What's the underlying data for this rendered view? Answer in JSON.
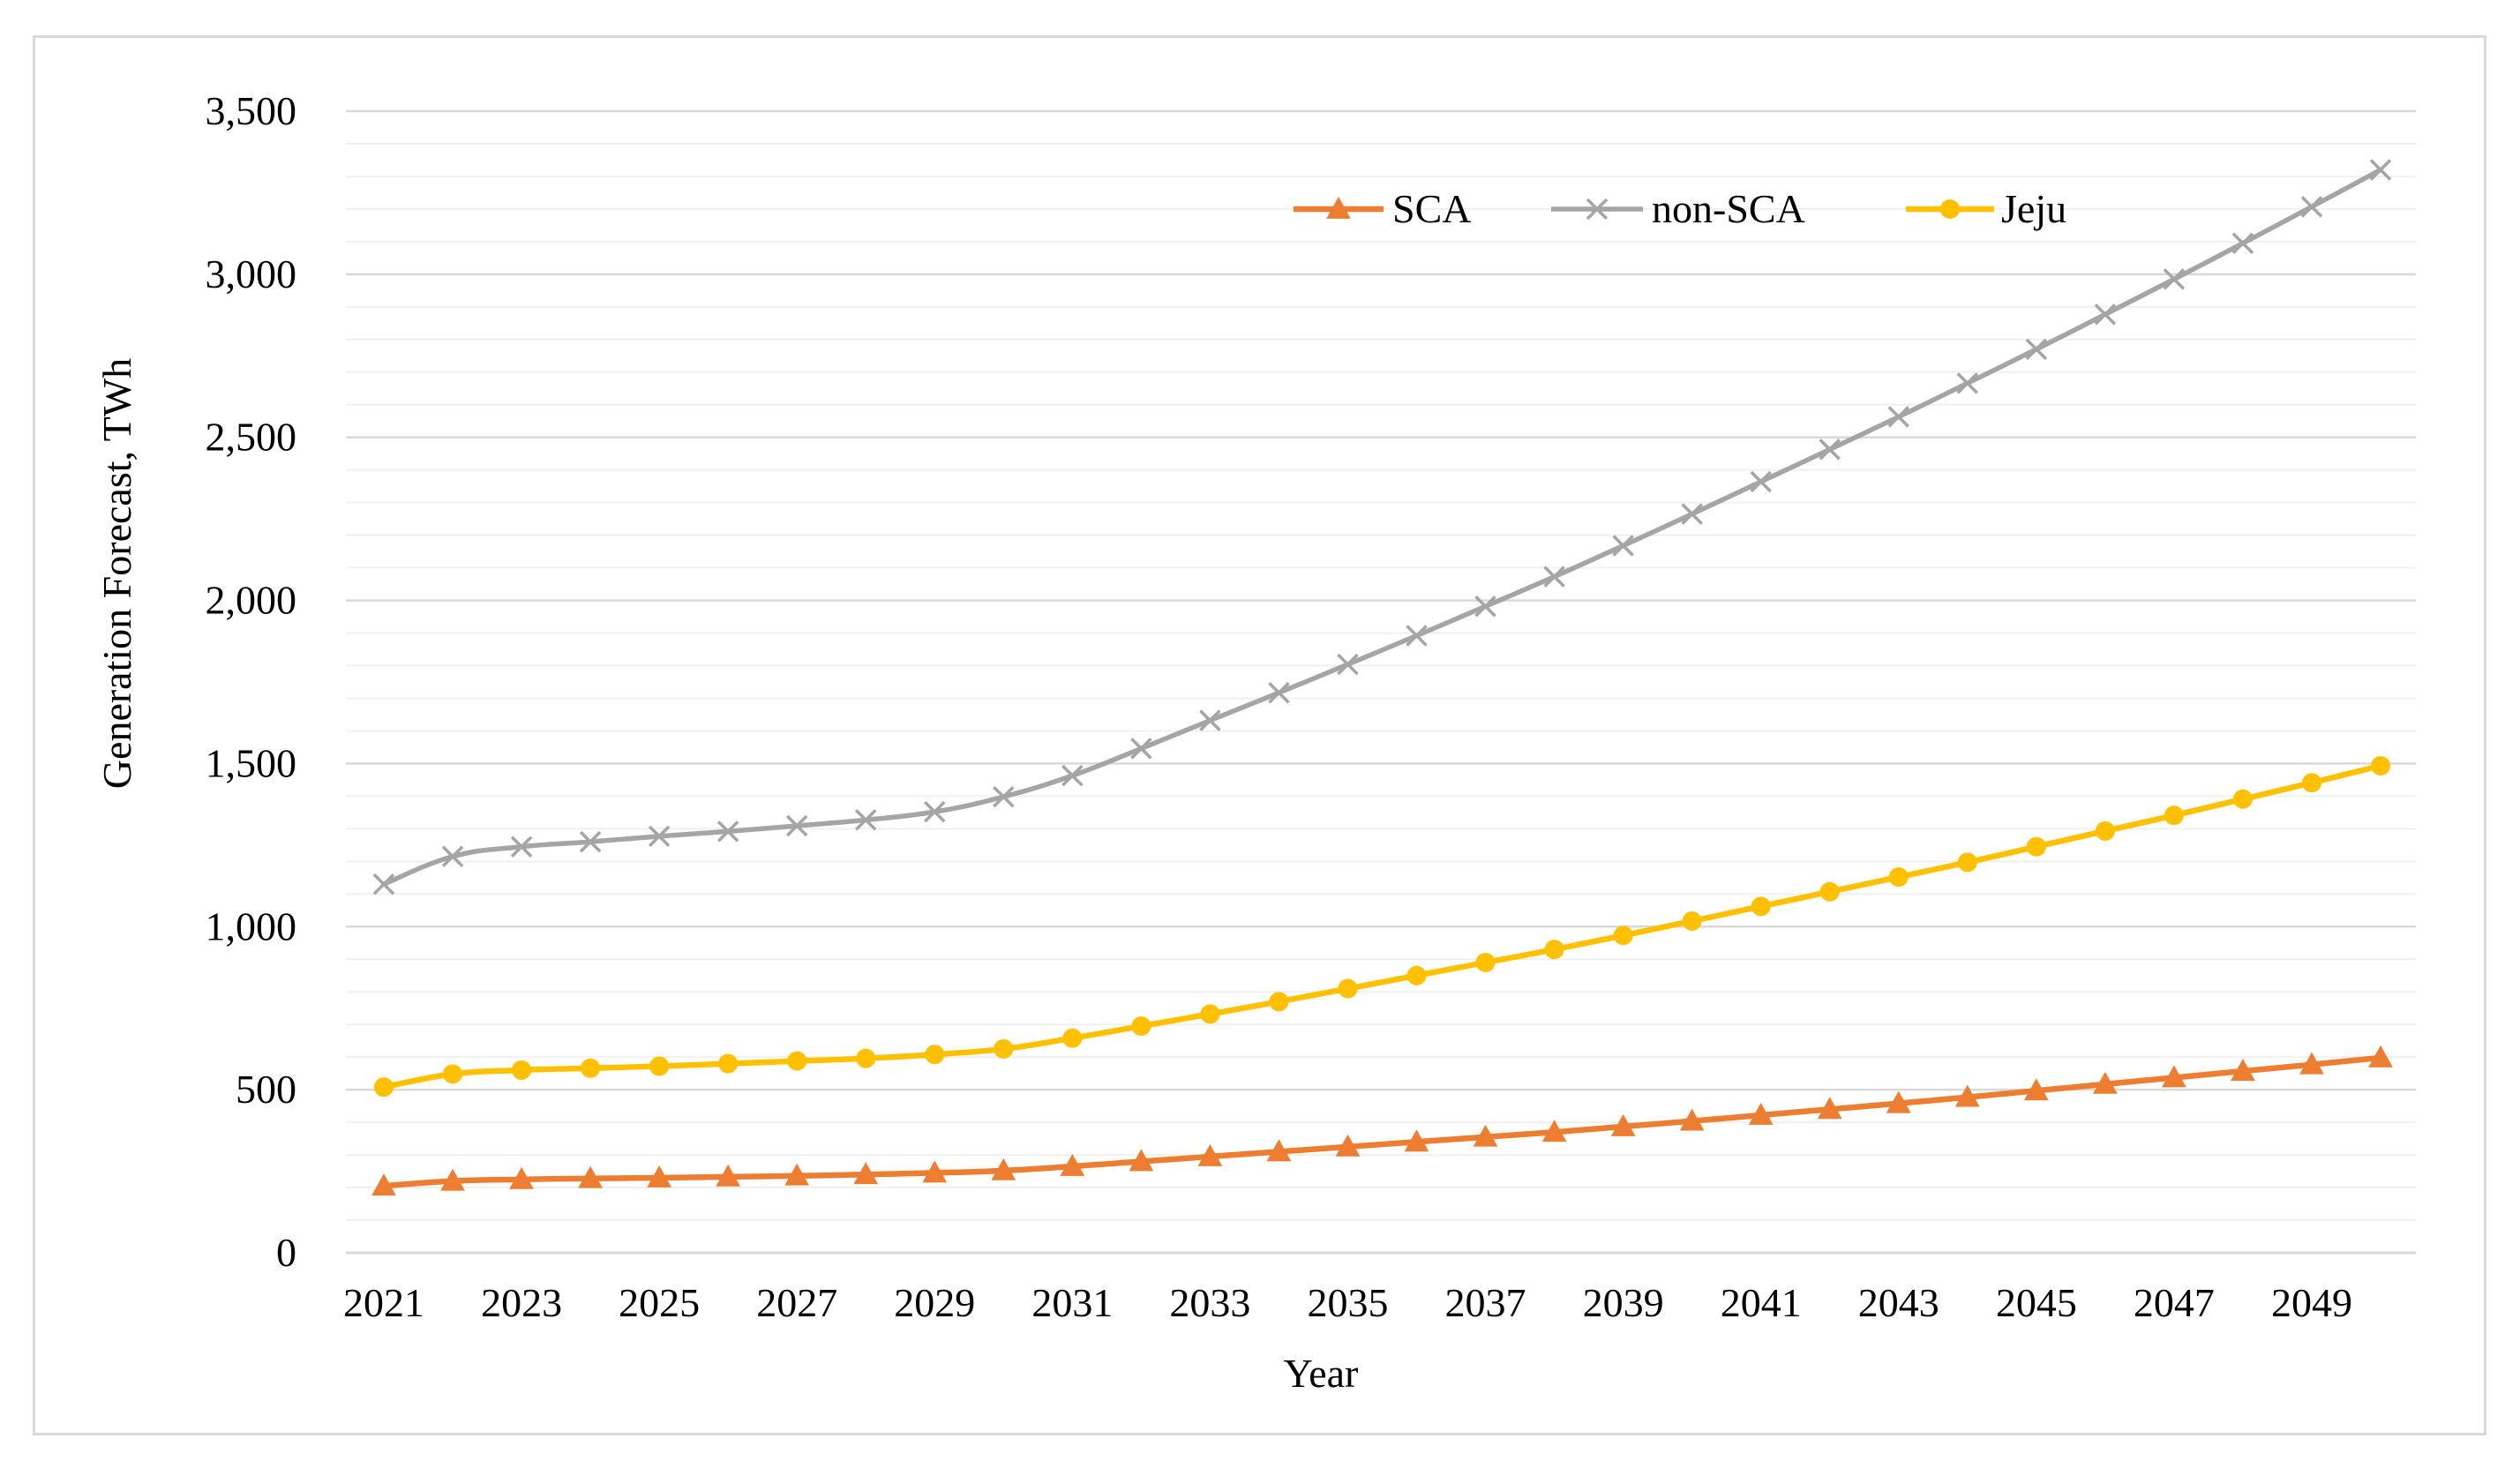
{
  "chart_data": {
    "type": "line",
    "title": "",
    "xlabel": "Year",
    "ylabel": "Generation Forecast, TWh",
    "ylim": [
      0,
      3500
    ],
    "yticks": [
      0,
      500,
      1000,
      1500,
      2000,
      2500,
      3000,
      3500
    ],
    "ytick_labels": [
      "0",
      "500",
      "1,000",
      "1,500",
      "2,000",
      "2,500",
      "3,000",
      "3,500"
    ],
    "minor_grid_step": 100,
    "x": [
      2021,
      2022,
      2023,
      2024,
      2025,
      2026,
      2027,
      2028,
      2029,
      2030,
      2031,
      2032,
      2033,
      2034,
      2035,
      2036,
      2037,
      2038,
      2039,
      2040,
      2041,
      2042,
      2043,
      2044,
      2045,
      2046,
      2047,
      2048,
      2049,
      2050
    ],
    "xtick_labels": [
      "2021",
      "2023",
      "2025",
      "2027",
      "2029",
      "2031",
      "2033",
      "2035",
      "2037",
      "2039",
      "2041",
      "2043",
      "2045",
      "2047",
      "2049"
    ],
    "legend_position": "top-center",
    "series": [
      {
        "name": "SCA",
        "color": "#ED7D31",
        "marker": "triangle",
        "values": [
          205,
          220,
          225,
          228,
          230,
          233,
          236,
          240,
          245,
          252,
          265,
          280,
          295,
          310,
          325,
          340,
          355,
          370,
          387,
          404,
          422,
          440,
          458,
          477,
          497,
          517,
          537,
          557,
          577,
          598
        ]
      },
      {
        "name": "non-SCA",
        "color": "#A5A5A5",
        "marker": "x",
        "values": [
          1130,
          1215,
          1245,
          1260,
          1277,
          1292,
          1309,
          1327,
          1352,
          1398,
          1463,
          1546,
          1632,
          1717,
          1804,
          1892,
          1982,
          2073,
          2168,
          2265,
          2364,
          2463,
          2563,
          2666,
          2770,
          2877,
          2985,
          3095,
          3207,
          3320
        ]
      },
      {
        "name": "Jeju",
        "color": "#FFC000",
        "marker": "circle",
        "values": [
          508,
          548,
          560,
          566,
          572,
          580,
          588,
          596,
          608,
          625,
          658,
          695,
          732,
          770,
          810,
          850,
          890,
          930,
          973,
          1017,
          1062,
          1107,
          1152,
          1197,
          1245,
          1293,
          1341,
          1391,
          1441,
          1493
        ]
      }
    ]
  }
}
